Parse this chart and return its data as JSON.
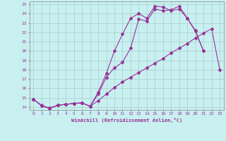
{
  "xlabel": "Windchill (Refroidissement éolien,°C)",
  "bg_color": "#c8f0f0",
  "line_color": "#993399",
  "grid_color": "#aacccc",
  "xlim": [
    -0.5,
    23.5
  ],
  "ylim": [
    13.7,
    25.3
  ],
  "xticks": [
    0,
    1,
    2,
    3,
    4,
    5,
    6,
    7,
    8,
    9,
    10,
    11,
    12,
    13,
    14,
    15,
    16,
    17,
    18,
    19,
    20,
    21,
    22,
    23
  ],
  "yticks": [
    14,
    15,
    16,
    17,
    18,
    19,
    20,
    21,
    22,
    23,
    24,
    25
  ],
  "line1_x": [
    0,
    1,
    2,
    3,
    4,
    5,
    6,
    7,
    8,
    9,
    10,
    11,
    12,
    13,
    14,
    15,
    16,
    17,
    18,
    19,
    20,
    21
  ],
  "line1_y": [
    14.85,
    14.15,
    13.85,
    14.2,
    14.3,
    14.4,
    14.45,
    14.1,
    15.6,
    17.6,
    20.0,
    21.8,
    23.5,
    24.0,
    23.5,
    24.8,
    24.7,
    24.3,
    24.5,
    23.5,
    22.2,
    20.0
  ],
  "line2_x": [
    0,
    1,
    2,
    3,
    4,
    5,
    6,
    7,
    8,
    9,
    10,
    11,
    12,
    13,
    14,
    15,
    16,
    17,
    18,
    19,
    20,
    21
  ],
  "line2_y": [
    14.85,
    14.2,
    13.9,
    14.2,
    14.3,
    14.4,
    14.45,
    14.1,
    15.4,
    17.2,
    18.2,
    18.8,
    20.3,
    23.4,
    23.2,
    24.5,
    24.3,
    24.4,
    24.8,
    23.5,
    22.1,
    20.0
  ],
  "line3_x": [
    0,
    1,
    2,
    3,
    4,
    5,
    6,
    7,
    8,
    9,
    10,
    11,
    12,
    13,
    14,
    15,
    16,
    17,
    18,
    19,
    20,
    21,
    22,
    23
  ],
  "line3_y": [
    14.85,
    14.15,
    13.9,
    14.2,
    14.3,
    14.4,
    14.45,
    14.1,
    14.7,
    15.4,
    16.1,
    16.7,
    17.2,
    17.7,
    18.2,
    18.7,
    19.2,
    19.8,
    20.3,
    20.8,
    21.4,
    21.9,
    22.4,
    18.0
  ]
}
